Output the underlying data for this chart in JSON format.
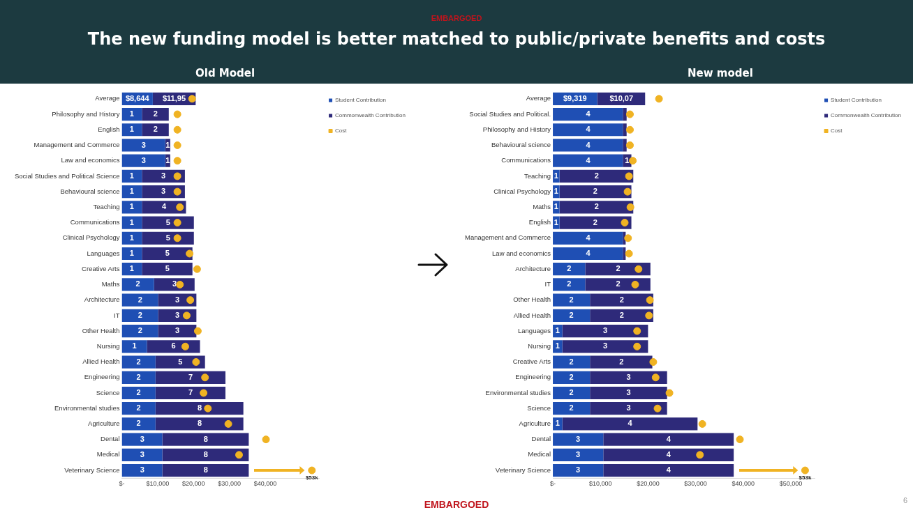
{
  "chart_data": [
    {
      "type": "bar",
      "title": "The new funding model is better matched to public/private benefits and costs",
      "subtitle": "Old Model",
      "orientation": "horizontal",
      "stacked": true,
      "legend": "right",
      "marker": "circle",
      "categories": [
        "Average",
        "Philosophy and History",
        "English",
        "Management and Commerce",
        "Law and economics",
        "Social Studies and Political Science",
        "Behavioural science",
        "Teaching",
        "Communications",
        "Clinical Psychology",
        "Languages",
        "Creative Arts",
        "Maths",
        "Architecture",
        "IT",
        "Other Health",
        "Nursing",
        "Allied Health",
        "Engineering",
        "Science",
        "Environmental studies",
        "Agriculture",
        "Dental",
        "Medical",
        "Veterinary Science"
      ],
      "xlim": [
        0,
        55000
      ],
      "xticks": [
        {
          "value": 0,
          "label": "$-"
        },
        {
          "value": 10000,
          "label": "$10,000"
        },
        {
          "value": 20000,
          "label": "$20,000"
        },
        {
          "value": 30000,
          "label": "$30,000"
        },
        {
          "value": 40000,
          "label": "$40,000"
        }
      ],
      "series": [
        {
          "name": "Student Contribution",
          "color": "#1f4fb4",
          "values": [
            8644,
            5600,
            5600,
            12100,
            12100,
            5600,
            5600,
            5600,
            5600,
            5600,
            5600,
            5600,
            9000,
            10100,
            10100,
            10100,
            7000,
            9400,
            9400,
            9400,
            9400,
            9400,
            11300,
            11300,
            11300
          ],
          "value_labels": [
            "$8,644",
            null,
            null,
            null,
            null,
            null,
            null,
            null,
            null,
            null,
            null,
            null,
            null,
            null,
            null,
            null,
            null,
            null,
            null,
            null,
            null,
            null,
            null,
            null,
            null
          ]
        },
        {
          "name": "Commonwealth Contribution",
          "color": "#2e2a7a",
          "values": [
            11950,
            7500,
            7500,
            1400,
            1400,
            12000,
            12000,
            12300,
            14500,
            14500,
            14100,
            14100,
            11300,
            10700,
            10700,
            10700,
            14800,
            13800,
            19500,
            19500,
            24500,
            24500,
            24100,
            24100,
            24100
          ]
        },
        {
          "name": "Cost",
          "type": "scatter",
          "color": "#f0b323",
          "values": [
            19600,
            15500,
            15500,
            15500,
            15500,
            15500,
            15500,
            16200,
            15500,
            15500,
            18900,
            21000,
            16200,
            19100,
            18100,
            21200,
            17700,
            20700,
            23200,
            22800,
            24000,
            29700,
            40200,
            32700,
            53000
          ],
          "value_labels": [
            null,
            null,
            null,
            null,
            null,
            null,
            null,
            null,
            null,
            null,
            null,
            null,
            null,
            null,
            null,
            null,
            null,
            null,
            null,
            null,
            null,
            null,
            null,
            null,
            "$53k"
          ]
        }
      ],
      "annotations": [
        "EMBARGOED",
        {
          "text": "$11,95",
          "x": 14600,
          "y": "Average"
        },
        {
          "text": "1",
          "x": 2800,
          "y": "Philosophy and History"
        },
        {
          "text": "2",
          "x": 9400,
          "y": "Philosophy and History"
        },
        {
          "text": "1",
          "x": 2800,
          "y": "English"
        },
        {
          "text": "2",
          "x": 9400,
          "y": "English"
        },
        {
          "text": "3",
          "x": 6100,
          "y": "Management and Commerce"
        },
        {
          "text": "1",
          "x": 12800,
          "y": "Management and Commerce"
        },
        {
          "text": "3",
          "x": 6100,
          "y": "Law and economics"
        },
        {
          "text": "1",
          "x": 12800,
          "y": "Law and economics"
        },
        {
          "text": "1",
          "x": 2800,
          "y": "Social Studies and Political Science"
        },
        {
          "text": "3",
          "x": 11600,
          "y": "Social Studies and Political Science"
        },
        {
          "text": "1",
          "x": 2800,
          "y": "Behavioural science"
        },
        {
          "text": "3",
          "x": 11600,
          "y": "Behavioural science"
        },
        {
          "text": "1",
          "x": 2800,
          "y": "Teaching"
        },
        {
          "text": "4",
          "x": 11800,
          "y": "Teaching"
        },
        {
          "text": "1",
          "x": 2800,
          "y": "Communications"
        },
        {
          "text": "5",
          "x": 12900,
          "y": "Communications"
        },
        {
          "text": "1",
          "x": 2800,
          "y": "Clinical Psychology"
        },
        {
          "text": "5",
          "x": 12900,
          "y": "Clinical Psychology"
        },
        {
          "text": "1",
          "x": 2800,
          "y": "Languages"
        },
        {
          "text": "5",
          "x": 12700,
          "y": "Languages"
        },
        {
          "text": "1",
          "x": 2800,
          "y": "Creative Arts"
        },
        {
          "text": "5",
          "x": 12700,
          "y": "Creative Arts"
        },
        {
          "text": "2",
          "x": 4500,
          "y": "Maths"
        },
        {
          "text": "3",
          "x": 14700,
          "y": "Maths"
        },
        {
          "text": "2",
          "x": 5100,
          "y": "Architecture"
        },
        {
          "text": "3",
          "x": 15500,
          "y": "Architecture"
        },
        {
          "text": "2",
          "x": 5100,
          "y": "IT"
        },
        {
          "text": "3",
          "x": 15500,
          "y": "IT"
        },
        {
          "text": "2",
          "x": 5100,
          "y": "Other Health"
        },
        {
          "text": "3",
          "x": 15500,
          "y": "Other Health"
        },
        {
          "text": "1",
          "x": 3500,
          "y": "Nursing"
        },
        {
          "text": "6",
          "x": 14400,
          "y": "Nursing"
        },
        {
          "text": "2",
          "x": 4700,
          "y": "Allied Health"
        },
        {
          "text": "5",
          "x": 16300,
          "y": "Allied Health"
        },
        {
          "text": "2",
          "x": 4700,
          "y": "Engineering"
        },
        {
          "text": "7",
          "x": 19200,
          "y": "Engineering"
        },
        {
          "text": "2",
          "x": 4700,
          "y": "Science"
        },
        {
          "text": "7",
          "x": 19200,
          "y": "Science"
        },
        {
          "text": "2",
          "x": 4700,
          "y": "Environmental studies"
        },
        {
          "text": "8",
          "x": 21700,
          "y": "Environmental studies"
        },
        {
          "text": "2",
          "x": 4700,
          "y": "Agriculture"
        },
        {
          "text": "8",
          "x": 21700,
          "y": "Agriculture"
        },
        {
          "text": "3",
          "x": 5700,
          "y": "Dental"
        },
        {
          "text": "8",
          "x": 23400,
          "y": "Dental"
        },
        {
          "text": "3",
          "x": 5700,
          "y": "Medical"
        },
        {
          "text": "8",
          "x": 23400,
          "y": "Medical"
        },
        {
          "text": "3",
          "x": 5700,
          "y": "Veterinary Science"
        },
        {
          "text": "8",
          "x": 23400,
          "y": "Veterinary Science"
        }
      ]
    },
    {
      "type": "bar",
      "subtitle": "New model",
      "orientation": "horizontal",
      "stacked": true,
      "legend": "right",
      "marker": "circle",
      "categories": [
        "Average",
        "Social Studies and Political.",
        "Philosophy and History",
        "Behavioural science",
        "Communications",
        "Teaching",
        "Clinical Psychology",
        "Maths",
        "English",
        "Management and Commerce",
        "Law and economics",
        "Architecture",
        "IT",
        "Other Health",
        "Allied Health",
        "Languages",
        "Nursing",
        "Creative Arts",
        "Engineering",
        "Environmental studies",
        "Science",
        "Agriculture",
        "Dental",
        "Medical",
        "Veterinary Science"
      ],
      "xlim": [
        0,
        55000
      ],
      "xticks": [
        {
          "value": 0,
          "label": "$-"
        },
        {
          "value": 10000,
          "label": "$10,000"
        },
        {
          "value": 20000,
          "label": "$20,000"
        },
        {
          "value": 30000,
          "label": "$30,000"
        },
        {
          "value": 40000,
          "label": "$40,000"
        },
        {
          "value": 50000,
          "label": "$50,000"
        }
      ],
      "series": [
        {
          "name": "Student Contribution",
          "color": "#1f4fb4",
          "values": [
            9319,
            14700,
            14700,
            14700,
            14700,
            1400,
            1400,
            1400,
            1400,
            14700,
            14700,
            6800,
            6800,
            7800,
            7800,
            2000,
            2000,
            7800,
            7800,
            7800,
            7800,
            2000,
            10600,
            10600,
            10600
          ],
          "value_labels": [
            "$9,319",
            null,
            null,
            null,
            null,
            null,
            null,
            null,
            null,
            null,
            null,
            null,
            null,
            null,
            null,
            null,
            null,
            null,
            null,
            null,
            null,
            null,
            null,
            null,
            null
          ]
        },
        {
          "name": "Commonwealth Contribution",
          "color": "#2e2a7a",
          "values": [
            10070,
            800,
            800,
            800,
            1800,
            15500,
            15100,
            15500,
            15100,
            600,
            600,
            13700,
            13700,
            13300,
            13300,
            18000,
            18000,
            13100,
            16200,
            16200,
            16200,
            28400,
            27400,
            27400,
            27400
          ]
        },
        {
          "name": "Cost",
          "type": "scatter",
          "color": "#f0b323",
          "values": [
            22300,
            16200,
            16200,
            16200,
            16800,
            16000,
            15700,
            16300,
            15100,
            15800,
            16000,
            18000,
            17300,
            20400,
            20200,
            17700,
            17700,
            21100,
            21600,
            24500,
            22000,
            31400,
            39300,
            30900,
            53000
          ],
          "value_labels": [
            null,
            null,
            null,
            null,
            null,
            null,
            null,
            null,
            null,
            null,
            null,
            null,
            null,
            null,
            null,
            null,
            null,
            null,
            null,
            null,
            null,
            null,
            null,
            null,
            "$53k"
          ]
        }
      ],
      "annotations": [
        "EMBARGOED",
        "6",
        {
          "text": "$10,07",
          "x": 14400,
          "y": "Average"
        },
        {
          "text": "4",
          "x": 7400,
          "y": "Social Studies and Political."
        },
        {
          "text": "4",
          "x": 7400,
          "y": "Philosophy and History"
        },
        {
          "text": "4",
          "x": 7400,
          "y": "Behavioural science"
        },
        {
          "text": "4",
          "x": 7400,
          "y": "Communications"
        },
        {
          "text": "1",
          "x": 15600,
          "y": "Communications"
        },
        {
          "text": "1",
          "x": 700,
          "y": "Teaching"
        },
        {
          "text": "2",
          "x": 9200,
          "y": "Teaching"
        },
        {
          "text": "1",
          "x": 700,
          "y": "Clinical Psychology"
        },
        {
          "text": "2",
          "x": 8900,
          "y": "Clinical Psychology"
        },
        {
          "text": "1",
          "x": 700,
          "y": "Maths"
        },
        {
          "text": "2",
          "x": 9200,
          "y": "Maths"
        },
        {
          "text": "1",
          "x": 700,
          "y": "English"
        },
        {
          "text": "2",
          "x": 8900,
          "y": "English"
        },
        {
          "text": "4",
          "x": 7400,
          "y": "Management and Commerce"
        },
        {
          "text": "4",
          "x": 7400,
          "y": "Law and economics"
        },
        {
          "text": "2",
          "x": 3400,
          "y": "Architecture"
        },
        {
          "text": "2",
          "x": 13700,
          "y": "Architecture"
        },
        {
          "text": "2",
          "x": 3400,
          "y": "IT"
        },
        {
          "text": "2",
          "x": 13700,
          "y": "IT"
        },
        {
          "text": "2",
          "x": 3900,
          "y": "Other Health"
        },
        {
          "text": "2",
          "x": 14500,
          "y": "Other Health"
        },
        {
          "text": "2",
          "x": 3900,
          "y": "Allied Health"
        },
        {
          "text": "2",
          "x": 14500,
          "y": "Allied Health"
        },
        {
          "text": "1",
          "x": 1000,
          "y": "Languages"
        },
        {
          "text": "3",
          "x": 11000,
          "y": "Languages"
        },
        {
          "text": "1",
          "x": 1000,
          "y": "Nursing"
        },
        {
          "text": "3",
          "x": 11000,
          "y": "Nursing"
        },
        {
          "text": "2",
          "x": 3900,
          "y": "Creative Arts"
        },
        {
          "text": "2",
          "x": 14400,
          "y": "Creative Arts"
        },
        {
          "text": "2",
          "x": 3900,
          "y": "Engineering"
        },
        {
          "text": "3",
          "x": 15900,
          "y": "Engineering"
        },
        {
          "text": "2",
          "x": 3900,
          "y": "Environmental studies"
        },
        {
          "text": "3",
          "x": 15900,
          "y": "Environmental studies"
        },
        {
          "text": "2",
          "x": 3900,
          "y": "Science"
        },
        {
          "text": "3",
          "x": 15900,
          "y": "Science"
        },
        {
          "text": "1",
          "x": 1000,
          "y": "Agriculture"
        },
        {
          "text": "4",
          "x": 16200,
          "y": "Agriculture"
        },
        {
          "text": "3",
          "x": 5300,
          "y": "Dental"
        },
        {
          "text": "4",
          "x": 24300,
          "y": "Dental"
        },
        {
          "text": "3",
          "x": 5300,
          "y": "Medical"
        },
        {
          "text": "4",
          "x": 24300,
          "y": "Medical"
        },
        {
          "text": "3",
          "x": 5300,
          "y": "Veterinary Science"
        },
        {
          "text": "4",
          "x": 24300,
          "y": "Veterinary Science"
        }
      ]
    }
  ]
}
